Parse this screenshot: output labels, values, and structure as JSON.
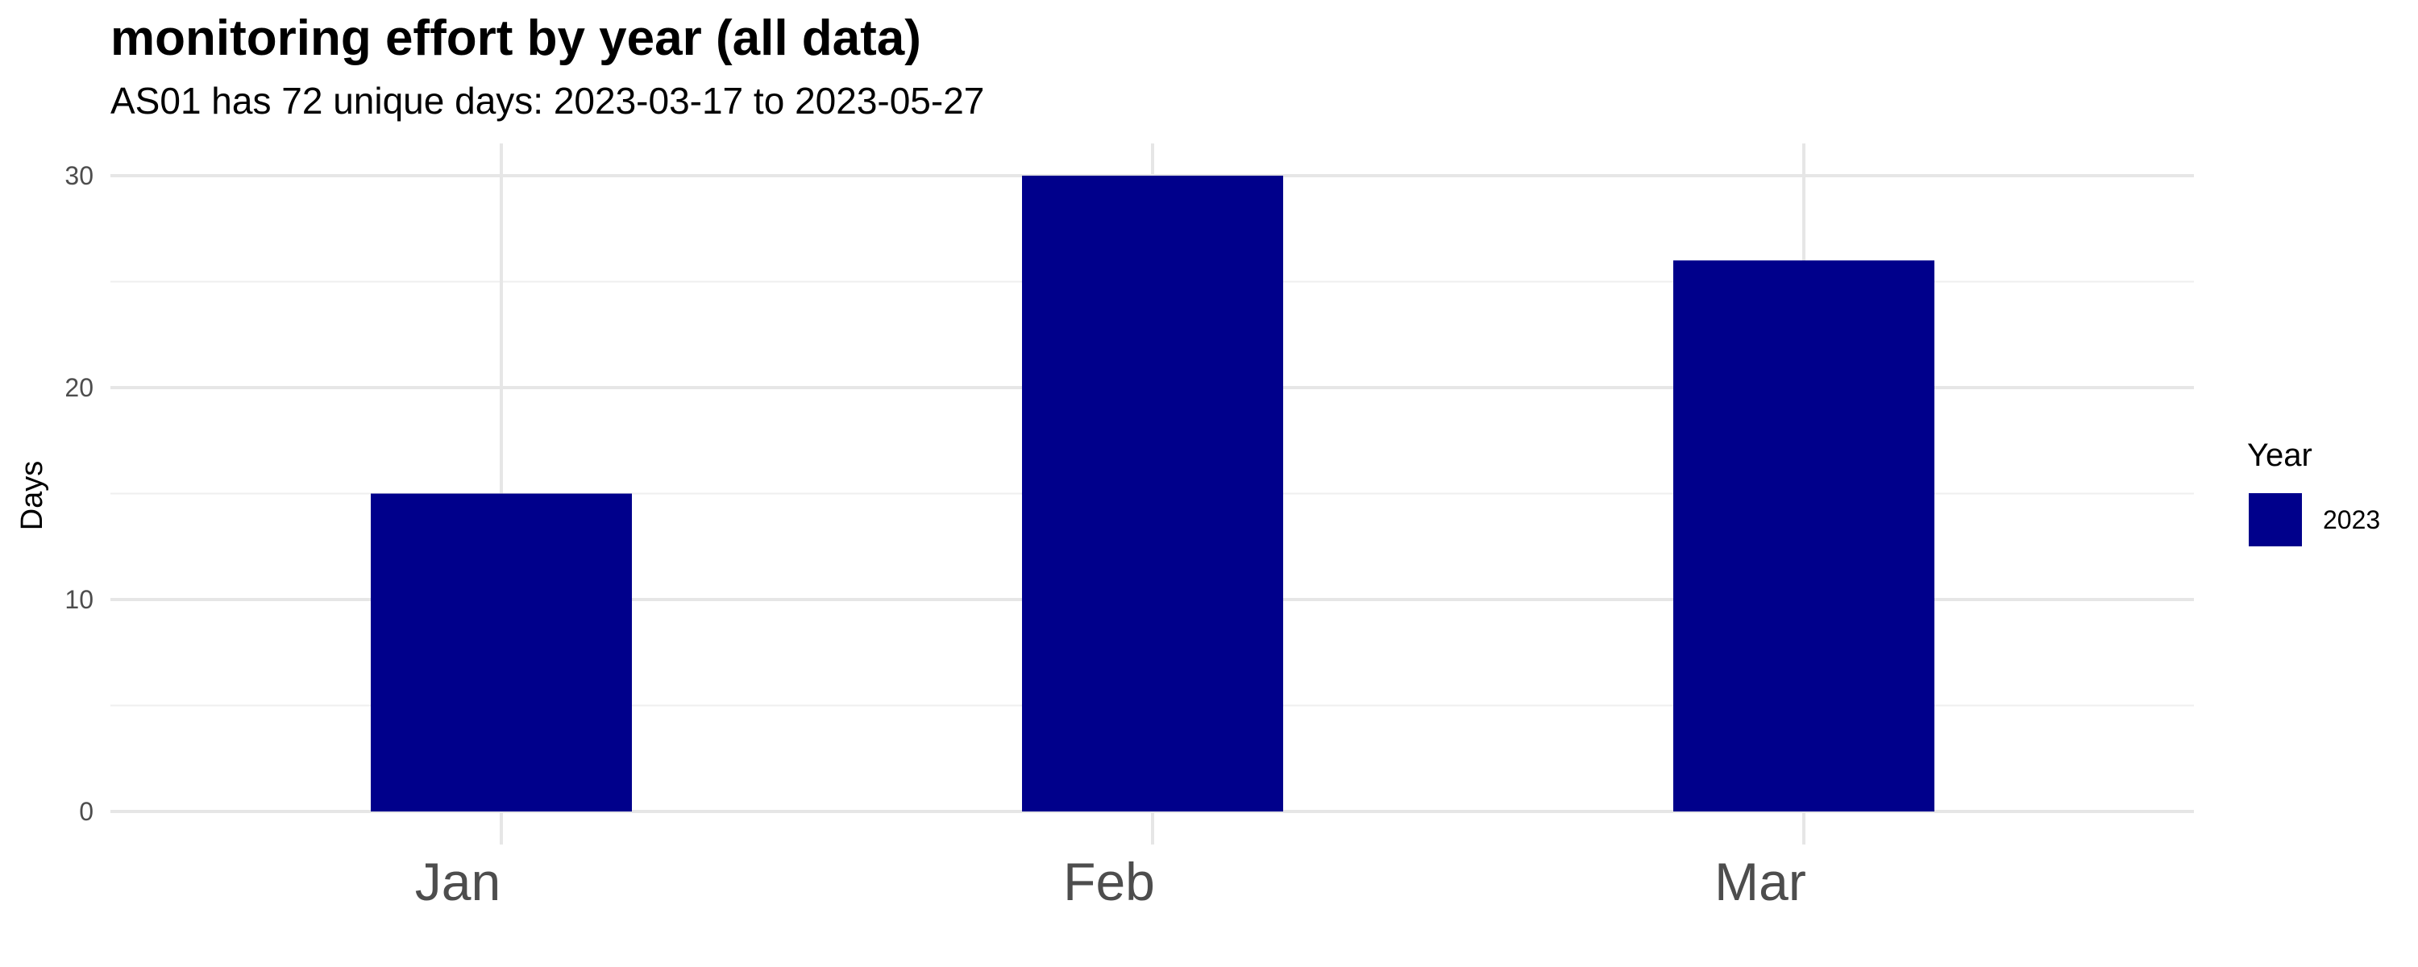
{
  "chart_data": {
    "type": "bar",
    "title": "monitoring effort by year (all data)",
    "subtitle": "AS01 has 72 unique days: 2023-03-17 to 2023-05-27",
    "xlabel": "",
    "ylabel": "Days",
    "categories": [
      "Jan",
      "Feb",
      "Mar"
    ],
    "series": [
      {
        "name": "2023",
        "values": [
          15,
          30,
          26
        ],
        "color": "#00008B"
      }
    ],
    "ylim": [
      0,
      30
    ],
    "yticks": [
      0,
      10,
      20,
      30
    ],
    "grid": true,
    "legend": {
      "title": "Year",
      "position": "right"
    }
  }
}
